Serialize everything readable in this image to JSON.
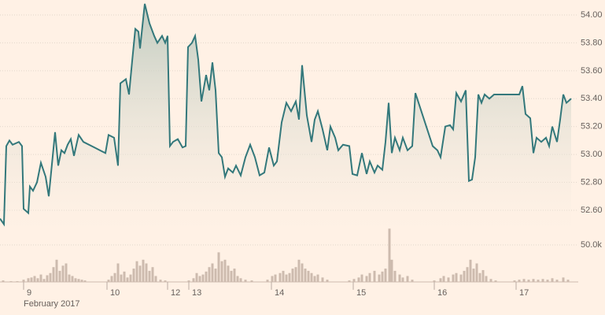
{
  "chart_data": [
    {
      "type": "line",
      "color": "#33787b",
      "fill": "#b7c6bb",
      "grid": true,
      "xlim": [
        0,
        735
      ],
      "ylim": [
        52.45,
        54.1
      ],
      "yticks": [
        {
          "value": 54,
          "label": "54.00"
        },
        {
          "value": 53.8,
          "label": "53.80"
        },
        {
          "value": 53.6,
          "label": "53.60"
        },
        {
          "value": 53.4,
          "label": "53.40"
        },
        {
          "value": 53.2,
          "label": "53.20"
        },
        {
          "value": 53,
          "label": "53.00"
        },
        {
          "value": 52.8,
          "label": "52.80"
        },
        {
          "value": 52.6,
          "label": "52.60"
        }
      ],
      "x": [
        0,
        5,
        8,
        12,
        16,
        24,
        28,
        30,
        36,
        38,
        42,
        47,
        52,
        58,
        62,
        66,
        70,
        74,
        78,
        82,
        86,
        90,
        94,
        100,
        106,
        120,
        134,
        138,
        145,
        150,
        153,
        160,
        164,
        168,
        172,
        176,
        178,
        184,
        190,
        196,
        200,
        206,
        210,
        213,
        216,
        220,
        226,
        232,
        236,
        239,
        244,
        248,
        252,
        256,
        262,
        266,
        270,
        274,
        278,
        282,
        286,
        290,
        296,
        300,
        306,
        312,
        318,
        324,
        330,
        336,
        342,
        348,
        352,
        358,
        364,
        370,
        376,
        380,
        384,
        390,
        396,
        400,
        404,
        410,
        416,
        420,
        426,
        430,
        436,
        444,
        448,
        454,
        460,
        466,
        470,
        476,
        480,
        486,
        490,
        494,
        498,
        502,
        508,
        512,
        518,
        524,
        528,
        550,
        556,
        560,
        566,
        572,
        576,
        580,
        586,
        592,
        596,
        600,
        604,
        608,
        612,
        616,
        622,
        628,
        660,
        664,
        668,
        674,
        678,
        682,
        688,
        694,
        698,
        702,
        708,
        712,
        716,
        720,
        726
      ],
      "values": [
        52.54,
        52.5,
        53.06,
        53.1,
        53.07,
        53.09,
        53.06,
        52.61,
        52.58,
        52.77,
        52.74,
        52.8,
        52.94,
        52.84,
        52.7,
        52.93,
        53.16,
        52.92,
        53.03,
        53.01,
        53.07,
        53.11,
        52.99,
        53.14,
        53.09,
        53.05,
        53.01,
        53.14,
        53.12,
        52.92,
        53.51,
        53.54,
        53.43,
        53.67,
        53.9,
        53.88,
        53.76,
        54.08,
        53.94,
        53.85,
        53.8,
        53.85,
        53.8,
        53.85,
        53.06,
        53.09,
        53.11,
        53.05,
        53.06,
        53.77,
        53.8,
        53.85,
        53.68,
        53.38,
        53.57,
        53.46,
        53.66,
        53.46,
        53.01,
        52.98,
        52.84,
        52.9,
        52.87,
        52.92,
        52.85,
        52.98,
        53.07,
        52.98,
        52.85,
        52.87,
        53.05,
        52.92,
        52.95,
        53.23,
        53.37,
        53.31,
        53.38,
        53.25,
        53.64,
        53.28,
        53.09,
        53.25,
        53.31,
        53.18,
        53.03,
        53.2,
        53.12,
        53.03,
        53.07,
        53.06,
        52.86,
        52.85,
        53.01,
        52.86,
        52.95,
        52.87,
        52.92,
        52.89,
        53.09,
        53.37,
        53.01,
        53.12,
        53.03,
        53.12,
        53.03,
        53.06,
        53.44,
        53.06,
        53.03,
        52.98,
        53.2,
        53.21,
        53.18,
        53.44,
        53.38,
        53.46,
        52.81,
        52.82,
        52.98,
        53.43,
        53.37,
        53.43,
        53.4,
        53.43,
        53.43,
        53.49,
        53.29,
        53.26,
        53.01,
        53.12,
        53.09,
        53.12,
        53.06,
        53.2,
        53.09,
        53.25,
        53.43,
        53.37,
        53.4
      ]
    },
    {
      "type": "bar",
      "color": "#cdbbae",
      "grid": true,
      "xlim": [
        0,
        735
      ],
      "ylim": [
        0,
        80000
      ],
      "yticks": [
        {
          "value": 50000,
          "label": "50.0k"
        }
      ],
      "xticks": [
        {
          "value": 30,
          "label": "9"
        },
        {
          "value": 136,
          "label": "10"
        },
        {
          "value": 213,
          "label": "12"
        },
        {
          "value": 240,
          "label": "13"
        },
        {
          "value": 345,
          "label": "14"
        },
        {
          "value": 449,
          "label": "15"
        },
        {
          "value": 552,
          "label": "16"
        },
        {
          "value": 656,
          "label": "17"
        }
      ],
      "xlabel": "February 2017",
      "x": [
        4,
        14,
        22,
        30,
        36,
        40,
        44,
        48,
        52,
        56,
        60,
        64,
        68,
        72,
        76,
        80,
        84,
        88,
        92,
        96,
        100,
        104,
        108,
        138,
        142,
        146,
        150,
        154,
        158,
        162,
        166,
        170,
        174,
        178,
        182,
        186,
        190,
        194,
        198,
        204,
        210,
        240,
        246,
        250,
        254,
        258,
        262,
        266,
        270,
        274,
        278,
        282,
        286,
        290,
        294,
        298,
        302,
        306,
        312,
        320,
        340,
        346,
        350,
        356,
        360,
        364,
        368,
        372,
        376,
        380,
        384,
        388,
        392,
        396,
        400,
        404,
        410,
        416,
        444,
        450,
        456,
        460,
        466,
        470,
        476,
        482,
        486,
        490,
        495,
        498,
        502,
        508,
        512,
        518,
        524,
        552,
        560,
        564,
        570,
        576,
        580,
        586,
        590,
        594,
        598,
        602,
        606,
        610,
        614,
        618,
        624,
        630,
        654,
        660,
        666,
        672,
        678,
        684,
        690,
        696,
        702,
        708,
        716,
        722
      ],
      "values": [
        2000,
        1000,
        1000,
        3000,
        5000,
        6000,
        8000,
        5000,
        10000,
        4000,
        9000,
        12000,
        20000,
        30000,
        15000,
        22000,
        25000,
        10000,
        8000,
        5000,
        4000,
        3000,
        2000,
        3000,
        8000,
        12000,
        25000,
        10000,
        14000,
        6000,
        10000,
        18000,
        28000,
        22000,
        30000,
        25000,
        15000,
        20000,
        8000,
        3000,
        2000,
        2000,
        5000,
        12000,
        8000,
        10000,
        14000,
        20000,
        25000,
        18000,
        40000,
        28000,
        30000,
        22000,
        15000,
        18000,
        8000,
        5000,
        3000,
        2000,
        3000,
        8000,
        10000,
        12000,
        15000,
        10000,
        12000,
        18000,
        20000,
        30000,
        25000,
        18000,
        15000,
        12000,
        8000,
        10000,
        6000,
        3000,
        2000,
        4000,
        6000,
        10000,
        8000,
        12000,
        15000,
        10000,
        14000,
        18000,
        72000,
        30000,
        15000,
        10000,
        6000,
        8000,
        3000,
        2000,
        5000,
        8000,
        6000,
        10000,
        12000,
        10000,
        15000,
        20000,
        30000,
        18000,
        25000,
        12000,
        16000,
        8000,
        4000,
        2000,
        2000,
        3000,
        4000,
        3000,
        4000,
        3000,
        4000,
        3000,
        5000,
        3000,
        6000,
        3000
      ]
    }
  ]
}
